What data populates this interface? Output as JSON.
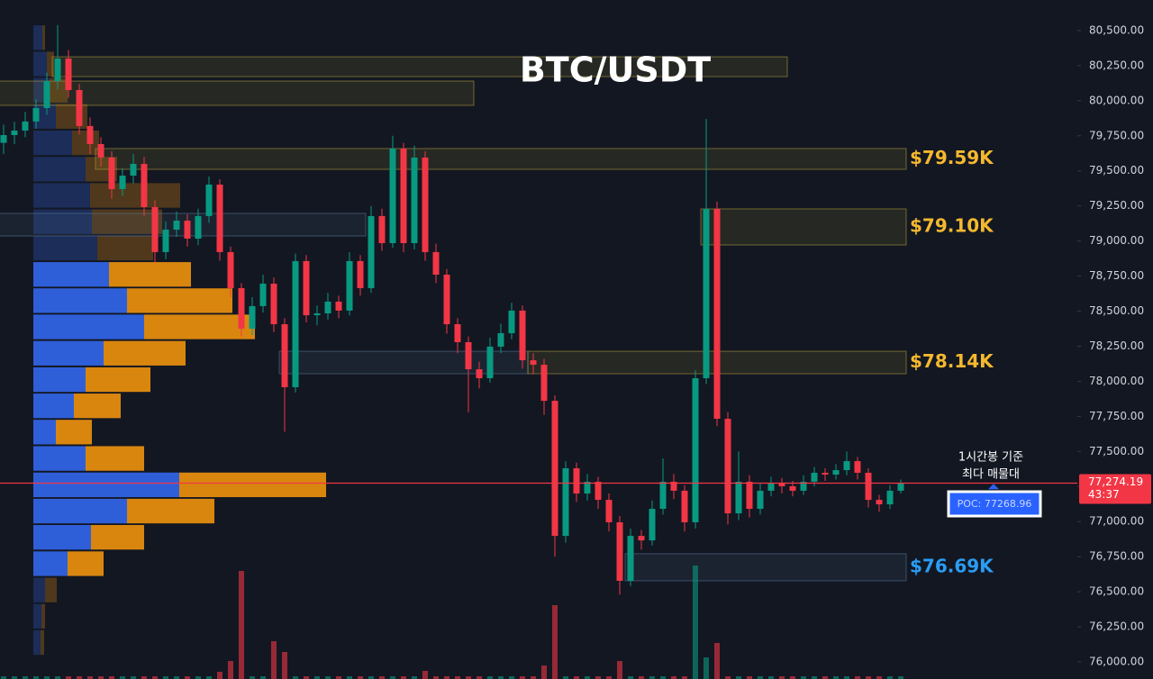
{
  "chart_data": {
    "type": "candlestick",
    "title": "BTC/USDT",
    "up_color": "#089981",
    "down_color": "#f23645",
    "open": [
      79700,
      79755,
      79787,
      79852,
      79948,
      80140,
      80301,
      80076,
      79820,
      79691,
      79595,
      79370,
      79466,
      79550,
      79242,
      78921,
      79081,
      79145,
      79017,
      79178,
      79402,
      78921,
      78664,
      78375,
      78536,
      78696,
      78407,
      77958,
      78857,
      78471,
      78484,
      78568,
      78504,
      78857,
      78664,
      79178,
      78985,
      79659,
      78985,
      79595,
      78921,
      78760,
      78407,
      78279,
      78086,
      78022,
      78247,
      78343,
      78504,
      78150,
      78118,
      77861,
      76898,
      77380,
      77200,
      77284,
      77155,
      76995,
      76578,
      76898,
      76866,
      77091,
      77284,
      77220,
      76995,
      78022,
      79229,
      77733,
      77059,
      77284,
      77091,
      77220,
      77271,
      77252,
      77220,
      77284,
      77348,
      77335,
      77367,
      77431,
      77348,
      77155,
      77123,
      77220
    ],
    "high": [
      79830,
      79850,
      79920,
      80010,
      80200,
      80540,
      80360,
      80120,
      79880,
      79740,
      79640,
      79520,
      79620,
      79600,
      79290,
      79140,
      79210,
      79190,
      79230,
      79460,
      79440,
      78960,
      78700,
      78600,
      78760,
      78740,
      78450,
      78910,
      78900,
      78540,
      78630,
      78610,
      78920,
      78900,
      79250,
      79230,
      79750,
      79700,
      79680,
      79640,
      78980,
      78800,
      78450,
      78320,
      78140,
      78310,
      78410,
      78560,
      78540,
      78200,
      78160,
      77900,
      77430,
      77420,
      77340,
      77320,
      77200,
      77040,
      76950,
      76940,
      77150,
      77450,
      77340,
      77260,
      78080,
      79870,
      79280,
      77780,
      77500,
      77330,
      77270,
      77320,
      77310,
      77290,
      77330,
      77390,
      77380,
      77410,
      77500,
      77460,
      77380,
      77190,
      77260,
      77300
    ],
    "low": [
      79620,
      79690,
      79740,
      79800,
      79900,
      80080,
      80020,
      79760,
      79620,
      79530,
      79300,
      79320,
      79410,
      79180,
      78850,
      78870,
      79030,
      78960,
      78970,
      79130,
      78860,
      78600,
      78320,
      78330,
      78490,
      78350,
      77640,
      77920,
      78420,
      78400,
      78440,
      78450,
      78470,
      78610,
      78630,
      78930,
      78950,
      78920,
      78940,
      78860,
      78700,
      78340,
      78200,
      77780,
      77950,
      77990,
      78200,
      78300,
      78090,
      78050,
      77760,
      76750,
      76850,
      77140,
      77150,
      77090,
      76930,
      76480,
      76540,
      76800,
      76830,
      77050,
      77160,
      76930,
      76950,
      77980,
      77680,
      76980,
      77010,
      77030,
      77050,
      77180,
      77200,
      77180,
      77190,
      77250,
      77290,
      77300,
      77330,
      77300,
      77100,
      77070,
      77090,
      77200
    ],
    "close": [
      79755,
      79787,
      79852,
      79948,
      80140,
      80301,
      80076,
      79820,
      79691,
      79595,
      79370,
      79466,
      79550,
      79242,
      78921,
      79081,
      79145,
      79017,
      79178,
      79402,
      78921,
      78664,
      78375,
      78536,
      78696,
      78407,
      77958,
      78857,
      78471,
      78484,
      78568,
      78504,
      78857,
      78664,
      79178,
      78985,
      79659,
      78985,
      79595,
      78921,
      78760,
      78407,
      78279,
      78086,
      78022,
      78247,
      78343,
      78504,
      78150,
      78118,
      77861,
      76898,
      77380,
      77200,
      77284,
      77155,
      76995,
      76578,
      76898,
      76866,
      77091,
      77284,
      77220,
      76995,
      78022,
      79229,
      77733,
      77059,
      77284,
      77091,
      77220,
      77271,
      77252,
      77220,
      77284,
      77348,
      77335,
      77367,
      77431,
      77348,
      77155,
      77123,
      77220,
      77274
    ],
    "volume": [
      3,
      3,
      3,
      3,
      3,
      3,
      3,
      3,
      3,
      3,
      3,
      3,
      3,
      3,
      3,
      3,
      3,
      3,
      3,
      3,
      8,
      20,
      120,
      3,
      3,
      42,
      30,
      3,
      3,
      3,
      3,
      3,
      3,
      3,
      3,
      3,
      3,
      3,
      3,
      9,
      3,
      3,
      3,
      3,
      3,
      3,
      3,
      3,
      3,
      3,
      15,
      82,
      3,
      3,
      3,
      3,
      3,
      20,
      3,
      3,
      3,
      3,
      3,
      3,
      126,
      24,
      40,
      3,
      3,
      3,
      3,
      3,
      3,
      3,
      3,
      3,
      3,
      3,
      3,
      3,
      3,
      3,
      3,
      3
    ],
    "ylim": [
      75878,
      80718
    ],
    "yticks": [
      {
        "value": 80500,
        "label": "80,500.00"
      },
      {
        "value": 80250,
        "label": "80,250.00"
      },
      {
        "value": 80000,
        "label": "80,000.00"
      },
      {
        "value": 79750,
        "label": "79,750.00"
      },
      {
        "value": 79500,
        "label": "79,500.00"
      },
      {
        "value": 79250,
        "label": "79,250.00"
      },
      {
        "value": 79000,
        "label": "79,000.00"
      },
      {
        "value": 78750,
        "label": "78,750.00"
      },
      {
        "value": 78500,
        "label": "78,500.00"
      },
      {
        "value": 78250,
        "label": "78,250.00"
      },
      {
        "value": 78000,
        "label": "78,000.00"
      },
      {
        "value": 77750,
        "label": "77,750.00"
      },
      {
        "value": 77500,
        "label": "77,500.00"
      },
      {
        "value": 77250,
        "label": "77,250.00"
      },
      {
        "value": 77000,
        "label": "77,000.00"
      },
      {
        "value": 76750,
        "label": "76,750.00"
      },
      {
        "value": 76500,
        "label": "76,500.00"
      },
      {
        "value": 76250,
        "label": "76,250.00"
      },
      {
        "value": 76000,
        "label": "76,000.00"
      }
    ],
    "profile": {
      "levels": [
        80450,
        80262,
        80075,
        79888,
        79700,
        79512,
        79325,
        79138,
        78950,
        78762,
        78575,
        78388,
        78200,
        78012,
        77825,
        77638,
        77450,
        77262,
        77075,
        76888,
        76700,
        76512,
        76325,
        76138
      ],
      "buy": [
        10,
        15,
        18,
        25,
        43,
        58,
        63,
        65,
        71,
        84,
        104,
        123,
        78,
        58,
        45,
        25,
        58,
        162,
        104,
        64,
        38,
        13,
        9,
        8
      ],
      "sell": [
        3,
        8,
        20,
        35,
        30,
        35,
        100,
        78,
        62,
        91,
        117,
        123,
        91,
        72,
        52,
        40,
        65,
        163,
        97,
        59,
        40,
        13,
        4,
        4
      ],
      "buy_color": "#2f5fd8",
      "sell_color": "#d9860f",
      "value_area": [
        76700,
        78762
      ]
    },
    "zones": [
      {
        "low": 80172,
        "high": 80313,
        "start": 5,
        "end": 72,
        "color": "#b8a23a"
      },
      {
        "low": 79967,
        "high": 80140,
        "start": 0,
        "end": 43,
        "color": "#b8a23a"
      },
      {
        "low": 79511,
        "high": 79659,
        "start": 9,
        "end": 83,
        "color": "#b8a23a",
        "label": "$79.59K",
        "label_color": "#f5b82e"
      },
      {
        "low": 78972,
        "high": 79229,
        "start": 65,
        "end": 83,
        "color": "#b8a23a",
        "label": "$79.10K",
        "label_color": "#f5b82e"
      },
      {
        "low": 79036,
        "high": 79197,
        "start": 0,
        "end": 33,
        "color": "#5a7a9a"
      },
      {
        "low": 78054,
        "high": 78214,
        "start": 26,
        "end": 48,
        "color": "#5a7a9a"
      },
      {
        "low": 78054,
        "high": 78214,
        "start": 49,
        "end": 83,
        "color": "#b8a23a",
        "label": "$78.14K",
        "label_color": "#f5b82e"
      },
      {
        "low": 76578,
        "high": 76771,
        "start": 58,
        "end": 83,
        "color": "#5a7a9a",
        "label": "$76.69K",
        "label_color": "#2a9df4"
      }
    ],
    "last_price": {
      "value": 77274.19,
      "label": "77,274.19"
    },
    "countdown": "43:37",
    "poc": {
      "value": 77268.96,
      "label": "POC: 77268.96"
    },
    "annotation": [
      "1시간봉 기준",
      "최다 매물대"
    ]
  }
}
